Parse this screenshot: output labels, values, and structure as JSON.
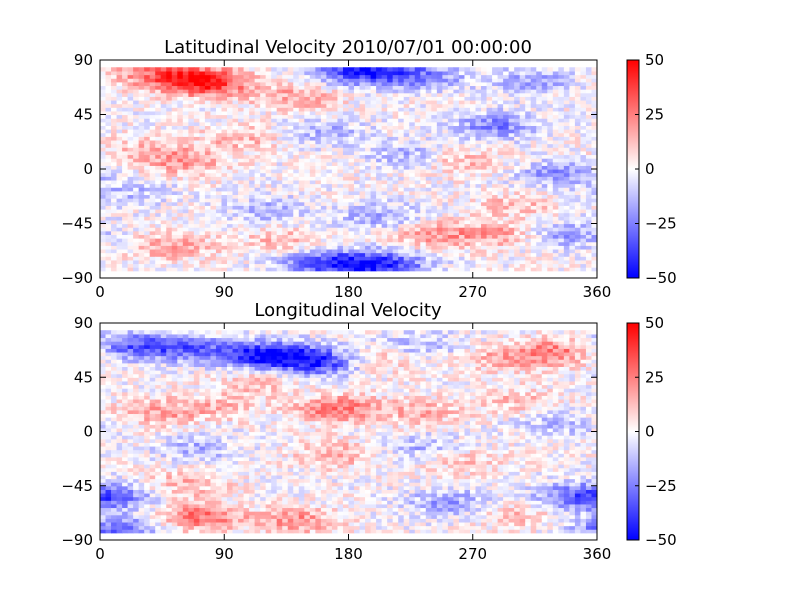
{
  "figure": {
    "background": "#ffffff"
  },
  "chart_data": [
    {
      "type": "heatmap",
      "title": "Latitudinal Velocity 2010/07/01 00:00:00",
      "xlabel": "",
      "ylabel": "",
      "xlim": [
        0,
        360
      ],
      "ylim": [
        -90,
        90
      ],
      "x_ticks": [
        "0",
        "90",
        "180",
        "270",
        "360"
      ],
      "y_ticks": [
        "90",
        "45",
        "0",
        "−45",
        "−90"
      ],
      "colorbar": {
        "range": [
          -50,
          50
        ],
        "ticks": [
          "50",
          "25",
          "0",
          "−25",
          "−50"
        ],
        "colormap": [
          "#0000ff",
          "#ffffff",
          "#ff0000"
        ]
      },
      "data_lat_range": [
        -84,
        84
      ],
      "grid": false,
      "features": [
        {
          "lon": 80,
          "lat": 70,
          "value": 32
        },
        {
          "lon": 60,
          "lat": 72,
          "value": 25
        },
        {
          "lon": 35,
          "lat": 78,
          "value": 20
        },
        {
          "lon": 140,
          "lat": 58,
          "value": 18
        },
        {
          "lon": 200,
          "lat": 80,
          "value": -30
        },
        {
          "lon": 175,
          "lat": 80,
          "value": -25
        },
        {
          "lon": 235,
          "lat": 75,
          "value": -20
        },
        {
          "lon": 310,
          "lat": 72,
          "value": -18
        },
        {
          "lon": 285,
          "lat": 35,
          "value": -25
        },
        {
          "lon": 160,
          "lat": 30,
          "value": -15
        },
        {
          "lon": 100,
          "lat": 25,
          "value": 15
        },
        {
          "lon": 60,
          "lat": 5,
          "value": 20
        },
        {
          "lon": 30,
          "lat": 15,
          "value": 12
        },
        {
          "lon": 220,
          "lat": 10,
          "value": -15
        },
        {
          "lon": 330,
          "lat": -5,
          "value": -20
        },
        {
          "lon": 260,
          "lat": 5,
          "value": 14
        },
        {
          "lon": 20,
          "lat": -20,
          "value": -12
        },
        {
          "lon": 120,
          "lat": -35,
          "value": -15
        },
        {
          "lon": 200,
          "lat": -40,
          "value": -18
        },
        {
          "lon": 300,
          "lat": -30,
          "value": 12
        },
        {
          "lon": 50,
          "lat": -65,
          "value": 18
        },
        {
          "lon": 130,
          "lat": -60,
          "value": 14
        },
        {
          "lon": 180,
          "lat": -80,
          "value": -35
        },
        {
          "lon": 210,
          "lat": -80,
          "value": -28
        },
        {
          "lon": 150,
          "lat": -78,
          "value": -20
        },
        {
          "lon": 240,
          "lat": -55,
          "value": 20
        },
        {
          "lon": 290,
          "lat": -55,
          "value": 18
        },
        {
          "lon": 335,
          "lat": -55,
          "value": -20
        }
      ]
    },
    {
      "type": "heatmap",
      "title": "Longitudinal Velocity",
      "xlabel": "",
      "ylabel": "",
      "xlim": [
        0,
        360
      ],
      "ylim": [
        -90,
        90
      ],
      "x_ticks": [
        "0",
        "90",
        "180",
        "270",
        "360"
      ],
      "y_ticks": [
        "90",
        "45",
        "0",
        "−45",
        "−90"
      ],
      "colorbar": {
        "range": [
          -50,
          50
        ],
        "ticks": [
          "50",
          "25",
          "0",
          "−25",
          "−50"
        ],
        "colormap": [
          "#0000ff",
          "#ffffff",
          "#ff0000"
        ]
      },
      "data_lat_range": [
        -84,
        84
      ],
      "grid": false,
      "features": [
        {
          "lon": 20,
          "lat": 70,
          "value": -30
        },
        {
          "lon": 60,
          "lat": 68,
          "value": -28
        },
        {
          "lon": 110,
          "lat": 62,
          "value": -38
        },
        {
          "lon": 160,
          "lat": 55,
          "value": -30
        },
        {
          "lon": 140,
          "lat": 62,
          "value": -26
        },
        {
          "lon": 230,
          "lat": 70,
          "value": -15
        },
        {
          "lon": 330,
          "lat": 65,
          "value": 25
        },
        {
          "lon": 290,
          "lat": 60,
          "value": 15
        },
        {
          "lon": 200,
          "lat": 58,
          "value": 15
        },
        {
          "lon": 110,
          "lat": 40,
          "value": 12
        },
        {
          "lon": 170,
          "lat": 18,
          "value": 28
        },
        {
          "lon": 230,
          "lat": 15,
          "value": 15
        },
        {
          "lon": 40,
          "lat": 15,
          "value": 18
        },
        {
          "lon": 85,
          "lat": 20,
          "value": 12
        },
        {
          "lon": 300,
          "lat": 25,
          "value": 12
        },
        {
          "lon": 70,
          "lat": -15,
          "value": -14
        },
        {
          "lon": 230,
          "lat": -15,
          "value": -15
        },
        {
          "lon": 330,
          "lat": 5,
          "value": -12
        },
        {
          "lon": 170,
          "lat": -20,
          "value": 18
        },
        {
          "lon": 260,
          "lat": -25,
          "value": 12
        },
        {
          "lon": 10,
          "lat": -55,
          "value": -25
        },
        {
          "lon": 340,
          "lat": -55,
          "value": -25
        },
        {
          "lon": 250,
          "lat": -60,
          "value": -20
        },
        {
          "lon": 60,
          "lat": -45,
          "value": 15
        },
        {
          "lon": 70,
          "lat": -72,
          "value": 28
        },
        {
          "lon": 140,
          "lat": -75,
          "value": 22
        },
        {
          "lon": 300,
          "lat": -70,
          "value": 12
        },
        {
          "lon": 10,
          "lat": -82,
          "value": -30
        }
      ]
    }
  ]
}
